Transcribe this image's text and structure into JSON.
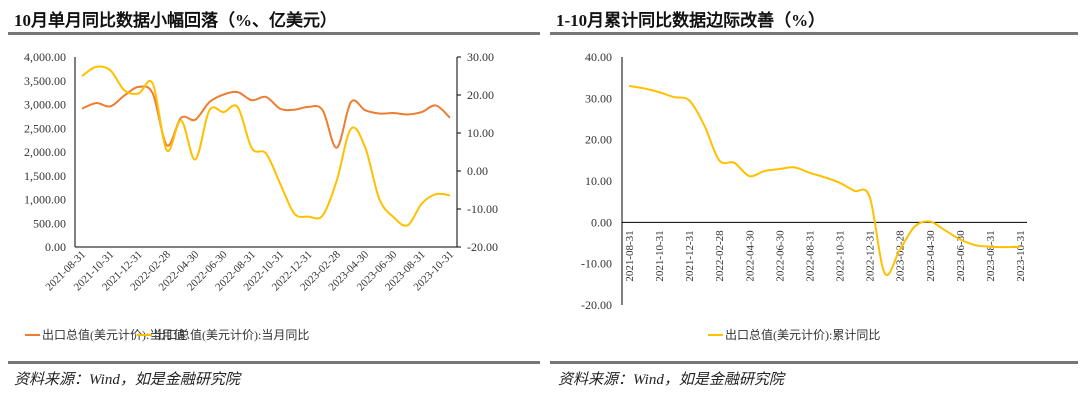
{
  "colors": {
    "value": "#ED7D31",
    "yoy": "#FFC000",
    "axis": "#000000",
    "rule": "#777777"
  },
  "chart_data": [
    {
      "type": "line",
      "title": "10月单月同比数据小幅回落（%、亿美元）",
      "x": [
        "2021-08-31",
        "2021-09-30",
        "2021-10-31",
        "2021-11-30",
        "2021-12-31",
        "2022-01-31",
        "2022-02-28",
        "2022-03-31",
        "2022-04-30",
        "2022-05-31",
        "2022-06-30",
        "2022-07-31",
        "2022-08-31",
        "2022-09-30",
        "2022-10-31",
        "2022-11-30",
        "2022-12-31",
        "2023-01-31",
        "2023-02-28",
        "2023-03-31",
        "2023-04-30",
        "2023-05-31",
        "2023-06-30",
        "2023-07-31",
        "2023-08-31",
        "2023-09-30",
        "2023-10-31"
      ],
      "xticks": [
        "2021-08-31",
        "2021-10-31",
        "2021-12-31",
        "2022-02-28",
        "2022-04-30",
        "2022-06-30",
        "2022-08-31",
        "2022-10-31",
        "2022-12-31",
        "2023-02-28",
        "2023-04-30",
        "2023-06-30",
        "2023-08-31",
        "2023-10-31"
      ],
      "y_left": {
        "ylim": [
          0,
          4000
        ],
        "ticks": [
          "0.00",
          "500.00",
          "1,000.00",
          "1,500.00",
          "2,000.00",
          "2,500.00",
          "3,000.00",
          "3,500.00",
          "4,000.00"
        ]
      },
      "y_right": {
        "ylim": [
          -20,
          30
        ],
        "ticks": [
          "-20.00",
          "-10.00",
          "0.00",
          "10.00",
          "20.00",
          "30.00"
        ]
      },
      "series": [
        {
          "name": "出口总值(美元计价):当月值",
          "axis": "left",
          "color": "#ED7D31",
          "values": [
            2912,
            3030,
            2960,
            3190,
            3370,
            3230,
            2140,
            2720,
            2680,
            3050,
            3210,
            3260,
            3090,
            3160,
            2910,
            2890,
            2950,
            2880,
            2090,
            3050,
            2880,
            2810,
            2820,
            2790,
            2840,
            2980,
            2720
          ]
        },
        {
          "name": "出口总值(美元计价):当月同比",
          "axis": "right",
          "color": "#FFC000",
          "values": [
            25.0,
            27.4,
            26.5,
            21.2,
            20.4,
            23.0,
            5.4,
            13.3,
            3.0,
            16.0,
            15.5,
            16.8,
            6.0,
            4.6,
            -3.3,
            -11.2,
            -12.0,
            -11.7,
            -2.5,
            11.1,
            6.3,
            -7.3,
            -12.1,
            -14.3,
            -8.6,
            -6.1,
            -6.4
          ]
        }
      ],
      "legend": "bottom",
      "grid": false
    },
    {
      "type": "line",
      "title": "1-10月累计同比数据边际改善（%）",
      "x": [
        "2021-08-31",
        "2021-09-30",
        "2021-10-31",
        "2021-11-30",
        "2021-12-31",
        "2022-01-31",
        "2022-02-28",
        "2022-03-31",
        "2022-04-30",
        "2022-05-31",
        "2022-06-30",
        "2022-07-31",
        "2022-08-31",
        "2022-09-30",
        "2022-10-31",
        "2022-11-30",
        "2022-12-31",
        "2023-01-31",
        "2023-02-28",
        "2023-03-31",
        "2023-04-30",
        "2023-05-31",
        "2023-06-30",
        "2023-07-31",
        "2023-08-31",
        "2023-09-30",
        "2023-10-31"
      ],
      "xticks": [
        "2021-08-31",
        "2021-10-31",
        "2021-12-31",
        "2022-02-28",
        "2022-04-30",
        "2022-06-30",
        "2022-08-31",
        "2022-10-31",
        "2022-12-31",
        "2023-02-28",
        "2023-04-30",
        "2023-06-30",
        "2023-08-31",
        "2023-10-31"
      ],
      "y": {
        "ylim": [
          -20,
          40
        ],
        "ticks": [
          "-20.00",
          "-10.00",
          "0.00",
          "10.00",
          "20.00",
          "30.00",
          "40.00"
        ]
      },
      "series": [
        {
          "name": "出口总值(美元计价):累计同比",
          "color": "#FFC000",
          "values": [
            33.0,
            32.4,
            31.5,
            30.3,
            29.5,
            23.5,
            15.0,
            14.4,
            11.2,
            12.4,
            12.9,
            13.3,
            12.0,
            10.9,
            9.6,
            7.6,
            6.2,
            -12.3,
            -6.7,
            -1.0,
            0.2,
            -1.9,
            -4.1,
            -5.5,
            -5.9,
            -6.0,
            -5.9
          ]
        }
      ],
      "legend": "bottom",
      "grid": false
    }
  ],
  "footer": {
    "left": "资料来源：Wind，如是金融研究院",
    "right": "资料来源：Wind，如是金融研究院"
  }
}
